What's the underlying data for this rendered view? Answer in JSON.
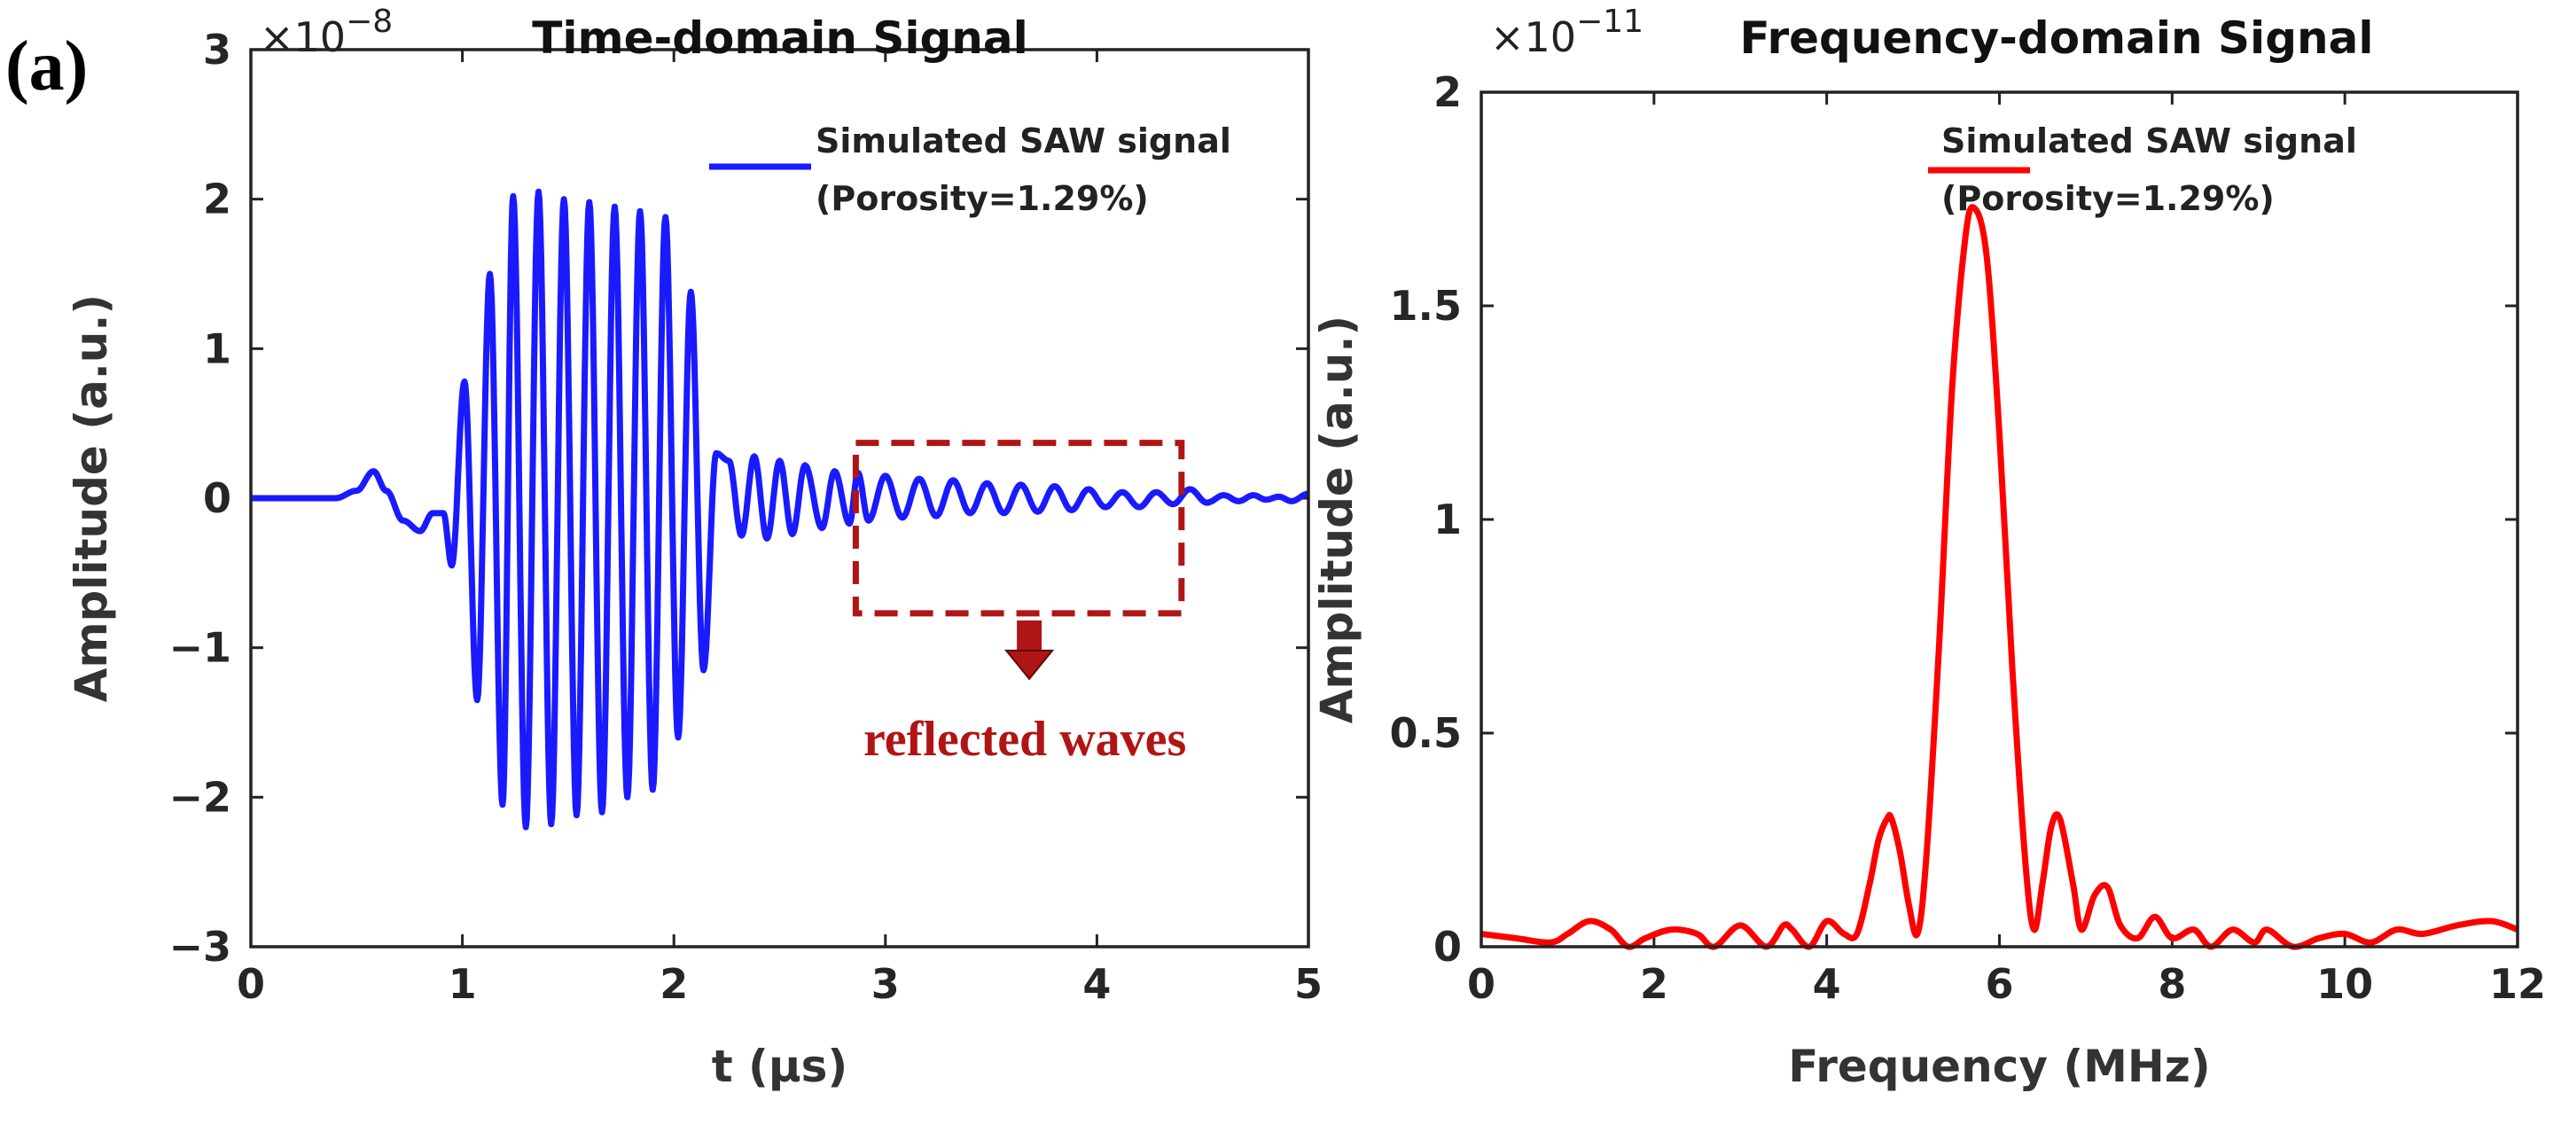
{
  "panel_label": "(a)",
  "chart_data": [
    {
      "type": "line",
      "title": "Time-domain Signal",
      "xlabel": "t (μs)",
      "ylabel": "Amplitude (a.u.)",
      "exponent_prefix": "×10",
      "exponent_power": "−8",
      "xlim": [
        0,
        5
      ],
      "ylim": [
        -3,
        3
      ],
      "xticks": [
        0,
        1,
        2,
        3,
        4,
        5
      ],
      "xtick_labels": [
        "0",
        "1",
        "2",
        "3",
        "4",
        "5"
      ],
      "yticks": [
        -3,
        -2,
        -1,
        0,
        1,
        2,
        3
      ],
      "ytick_labels": [
        "−3",
        "−2",
        "−1",
        "0",
        "1",
        "2",
        "3"
      ],
      "legend": [
        "Simulated SAW signal",
        "(Porosity=1.29%)"
      ],
      "legend_position": "top-right",
      "line_color": "#1a1aff",
      "series": [
        {
          "name": "Simulated SAW signal (Porosity=1.29%)",
          "model": "sampled",
          "peaks_t": [
            0.0,
            0.4,
            0.5,
            0.58,
            0.64,
            0.72,
            0.8,
            0.86,
            0.91,
            0.95,
            1.01,
            1.07,
            1.13,
            1.19,
            1.24,
            1.3,
            1.36,
            1.42,
            1.48,
            1.54,
            1.6,
            1.66,
            1.72,
            1.78,
            1.84,
            1.9,
            1.96,
            2.02,
            2.08,
            2.14,
            2.2,
            2.26,
            2.32,
            2.38,
            2.44,
            2.5,
            2.56,
            2.62,
            2.7,
            2.76,
            2.83,
            2.87,
            2.92,
            3.0,
            3.08,
            3.16,
            3.24,
            3.32,
            3.4,
            3.48,
            3.56,
            3.64,
            3.72,
            3.8,
            3.88,
            3.96,
            4.04,
            4.12,
            4.2,
            4.28,
            4.36,
            4.44,
            4.52,
            4.6,
            4.67,
            4.74,
            4.8,
            4.86,
            4.92,
            5.0
          ],
          "peaks_v": [
            0.0,
            0.0,
            0.05,
            0.18,
            0.05,
            -0.15,
            -0.22,
            -0.1,
            -0.1,
            -0.45,
            0.78,
            -1.35,
            1.5,
            -2.05,
            2.02,
            -2.2,
            2.05,
            -2.18,
            2.0,
            -2.12,
            1.98,
            -2.1,
            1.95,
            -2.0,
            1.92,
            -1.95,
            1.88,
            -1.6,
            1.38,
            -1.15,
            0.3,
            0.25,
            -0.25,
            0.28,
            -0.27,
            0.25,
            -0.24,
            0.22,
            -0.2,
            0.18,
            -0.17,
            0.17,
            -0.15,
            0.15,
            -0.13,
            0.13,
            -0.12,
            0.12,
            -0.1,
            0.1,
            -0.1,
            0.09,
            -0.09,
            0.08,
            -0.08,
            0.06,
            -0.06,
            0.04,
            -0.06,
            0.04,
            -0.04,
            0.06,
            -0.03,
            0.02,
            -0.02,
            0.02,
            -0.01,
            0.01,
            -0.02,
            0.03
          ]
        }
      ],
      "annotation": {
        "text": "reflected waves",
        "box_x": [
          2.86,
          4.4
        ],
        "box_y": [
          -0.77,
          0.37
        ],
        "color": "#b01515"
      }
    },
    {
      "type": "line",
      "title": "Frequency-domain Signal",
      "xlabel": "Frequency (MHz)",
      "ylabel": "Amplitude (a.u.)",
      "exponent_prefix": "×10",
      "exponent_power": "−11",
      "xlim": [
        0,
        12
      ],
      "ylim": [
        0,
        2
      ],
      "xticks": [
        0,
        2,
        4,
        6,
        8,
        10,
        12
      ],
      "xtick_labels": [
        "0",
        "2",
        "4",
        "6",
        "8",
        "10",
        "12"
      ],
      "yticks": [
        0,
        0.5,
        1,
        1.5,
        2
      ],
      "ytick_labels": [
        "0",
        "0.5",
        "1",
        "1.5",
        "2"
      ],
      "legend": [
        "Simulated SAW signal",
        "(Porosity=1.29%)"
      ],
      "legend_position": "top-right",
      "line_color": "#ff0000",
      "series": [
        {
          "name": "Simulated SAW signal (Porosity=1.29%)",
          "x": [
            0,
            0.4,
            0.8,
            1.0,
            1.25,
            1.5,
            1.7,
            1.9,
            2.2,
            2.5,
            2.7,
            3.0,
            3.3,
            3.5,
            3.6,
            3.8,
            4.0,
            4.2,
            4.35,
            4.5,
            4.6,
            4.7,
            4.75,
            4.85,
            4.95,
            5.05,
            5.15,
            5.3,
            5.45,
            5.6,
            5.7,
            5.85,
            6.0,
            6.15,
            6.3,
            6.4,
            6.5,
            6.6,
            6.7,
            6.85,
            6.95,
            7.1,
            7.25,
            7.4,
            7.6,
            7.8,
            8.0,
            8.25,
            8.45,
            8.7,
            8.95,
            9.1,
            9.4,
            9.7,
            10.0,
            10.3,
            10.6,
            10.9,
            11.3,
            11.7,
            12.0
          ],
          "y": [
            0.03,
            0.02,
            0.01,
            0.03,
            0.06,
            0.04,
            0.0,
            0.02,
            0.04,
            0.03,
            0.0,
            0.05,
            0.0,
            0.05,
            0.04,
            0.0,
            0.06,
            0.03,
            0.03,
            0.15,
            0.25,
            0.3,
            0.3,
            0.22,
            0.1,
            0.03,
            0.2,
            0.7,
            1.3,
            1.65,
            1.73,
            1.62,
            1.2,
            0.65,
            0.2,
            0.04,
            0.15,
            0.28,
            0.3,
            0.15,
            0.04,
            0.12,
            0.14,
            0.05,
            0.02,
            0.07,
            0.02,
            0.04,
            0.0,
            0.04,
            0.01,
            0.04,
            0.0,
            0.02,
            0.03,
            0.01,
            0.04,
            0.03,
            0.05,
            0.06,
            0.04
          ]
        }
      ]
    }
  ]
}
